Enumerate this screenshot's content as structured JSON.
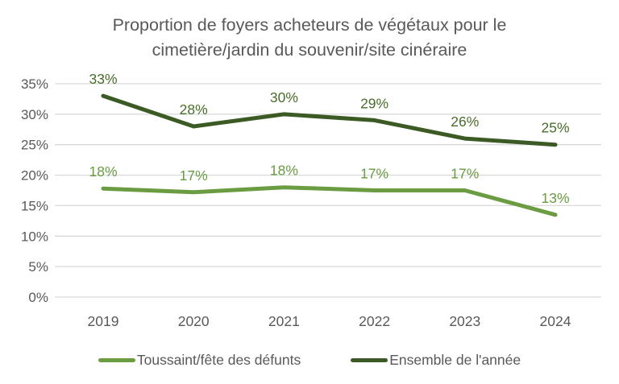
{
  "title": "Proportion de foyers acheteurs de végétaux pour le cimetière/jardin du souvenir/site cinéraire",
  "chart_data": {
    "type": "line",
    "title": "Proportion de foyers acheteurs de végétaux pour le cimetière/jardin du souvenir/site cinéraire",
    "categories": [
      "2019",
      "2020",
      "2021",
      "2022",
      "2023",
      "2024"
    ],
    "series": [
      {
        "name": "Toussaint/fête des défunts",
        "color": "#6b9c41",
        "label_color": "#699b41",
        "values": [
          18,
          17,
          18,
          17,
          17,
          13
        ],
        "plot_values": [
          17.8,
          17.2,
          18,
          17.5,
          17.5,
          13.5
        ],
        "labels": [
          "18%",
          "17%",
          "18%",
          "17%",
          "17%",
          "13%"
        ]
      },
      {
        "name": "Ensemble de l'année",
        "color": "#3c5a24",
        "label_color": "#4a6c2a",
        "values": [
          33,
          28,
          30,
          29,
          26,
          25
        ],
        "plot_values": [
          33,
          28,
          30,
          29,
          26,
          25
        ],
        "labels": [
          "33%",
          "28%",
          "30%",
          "29%",
          "26%",
          "25%"
        ]
      }
    ],
    "xlabel": "",
    "ylabel": "",
    "ylim": [
      0,
      35
    ],
    "yticks": [
      {
        "value": 0,
        "label": "0%"
      },
      {
        "value": 5,
        "label": "5%"
      },
      {
        "value": 10,
        "label": "10%"
      },
      {
        "value": 15,
        "label": "15%"
      },
      {
        "value": 20,
        "label": "20%"
      },
      {
        "value": 25,
        "label": "25%"
      },
      {
        "value": 30,
        "label": "30%"
      },
      {
        "value": 35,
        "label": "35%"
      }
    ],
    "grid": true,
    "grid_color": "#d9d9d9",
    "axis_text_color": "#595959",
    "legend_position": "bottom"
  },
  "legend": {
    "items": [
      {
        "label": "Toussaint/fête des défunts",
        "color": "#6b9c41"
      },
      {
        "label": "Ensemble de l'année",
        "color": "#3c5a24"
      }
    ]
  }
}
